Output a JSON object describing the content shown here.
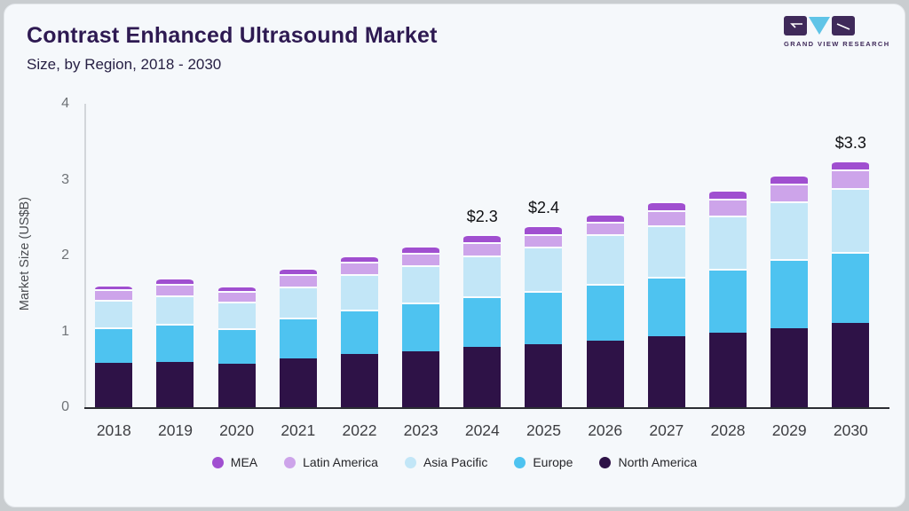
{
  "header": {
    "title": "Contrast Enhanced Ultrasound Market",
    "subtitle": "Size, by Region, 2018 - 2030"
  },
  "logo": {
    "name": "grand-view-research-logo",
    "text": "GRAND VIEW RESEARCH",
    "block_color": "#3f2a5a",
    "triangle_color": "#5fc4e7"
  },
  "chart_data": {
    "type": "bar",
    "stacked": true,
    "title": "Contrast Enhanced Ultrasound Market Size, by Region, 2018 - 2030",
    "xlabel": "",
    "ylabel": "Market Size (US$B)",
    "ylim": [
      0,
      4
    ],
    "yticks": [
      0,
      1,
      2,
      3,
      4
    ],
    "grid": false,
    "legend_position": "bottom",
    "categories": [
      2018,
      2019,
      2020,
      2021,
      2022,
      2023,
      2024,
      2025,
      2026,
      2027,
      2028,
      2029,
      2030
    ],
    "series": [
      {
        "name": "North America",
        "color": "#2e1247",
        "values": [
          0.58,
          0.6,
          0.57,
          0.64,
          0.7,
          0.74,
          0.79,
          0.83,
          0.88,
          0.93,
          0.98,
          1.04,
          1.11
        ]
      },
      {
        "name": "Europe",
        "color": "#4ec3f0",
        "values": [
          0.47,
          0.5,
          0.47,
          0.54,
          0.59,
          0.64,
          0.67,
          0.7,
          0.75,
          0.79,
          0.85,
          0.91,
          0.94
        ]
      },
      {
        "name": "Asia Pacific",
        "color": "#c2e6f7",
        "values": [
          0.36,
          0.37,
          0.35,
          0.41,
          0.47,
          0.49,
          0.54,
          0.59,
          0.65,
          0.68,
          0.7,
          0.76,
          0.84
        ]
      },
      {
        "name": "Latin America",
        "color": "#cda4ea",
        "values": [
          0.15,
          0.16,
          0.14,
          0.17,
          0.16,
          0.17,
          0.17,
          0.16,
          0.16,
          0.2,
          0.22,
          0.24,
          0.24
        ]
      },
      {
        "name": "MEA",
        "color": "#a04fd0",
        "values": [
          0.05,
          0.08,
          0.07,
          0.08,
          0.08,
          0.09,
          0.11,
          0.12,
          0.11,
          0.11,
          0.12,
          0.11,
          0.12
        ]
      }
    ],
    "legend_order": [
      "MEA",
      "Latin America",
      "Asia Pacific",
      "Europe",
      "North America"
    ],
    "annotations": [
      {
        "category": 2024,
        "label": "$2.3"
      },
      {
        "category": 2025,
        "label": "$2.4"
      },
      {
        "category": 2030,
        "label": "$3.3"
      }
    ]
  }
}
